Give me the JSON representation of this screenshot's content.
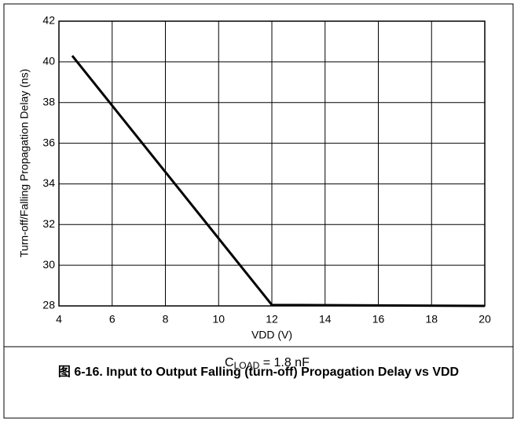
{
  "chart_data": {
    "type": "line",
    "caption": "图 6-16. Input to Output Falling (turn-off) Propagation Delay vs VDD",
    "xlabel": "VDD (V)",
    "ylabel": "Turn-off/Falling Propagation Delay (ns)",
    "annotation": {
      "base": "C",
      "subscript": "LOAD",
      "text": " = 1.8 nF"
    },
    "x": [
      4.5,
      12,
      20
    ],
    "series": [
      {
        "color": "#000000",
        "values": [
          40.3,
          28.05,
          28.0
        ]
      }
    ],
    "xlim": [
      4,
      20
    ],
    "xticks": [
      4,
      6,
      8,
      10,
      12,
      14,
      16,
      18,
      20
    ],
    "ylim": [
      28,
      42
    ],
    "yticks": [
      28,
      30,
      32,
      34,
      36,
      38,
      40,
      42
    ],
    "grid": true
  }
}
